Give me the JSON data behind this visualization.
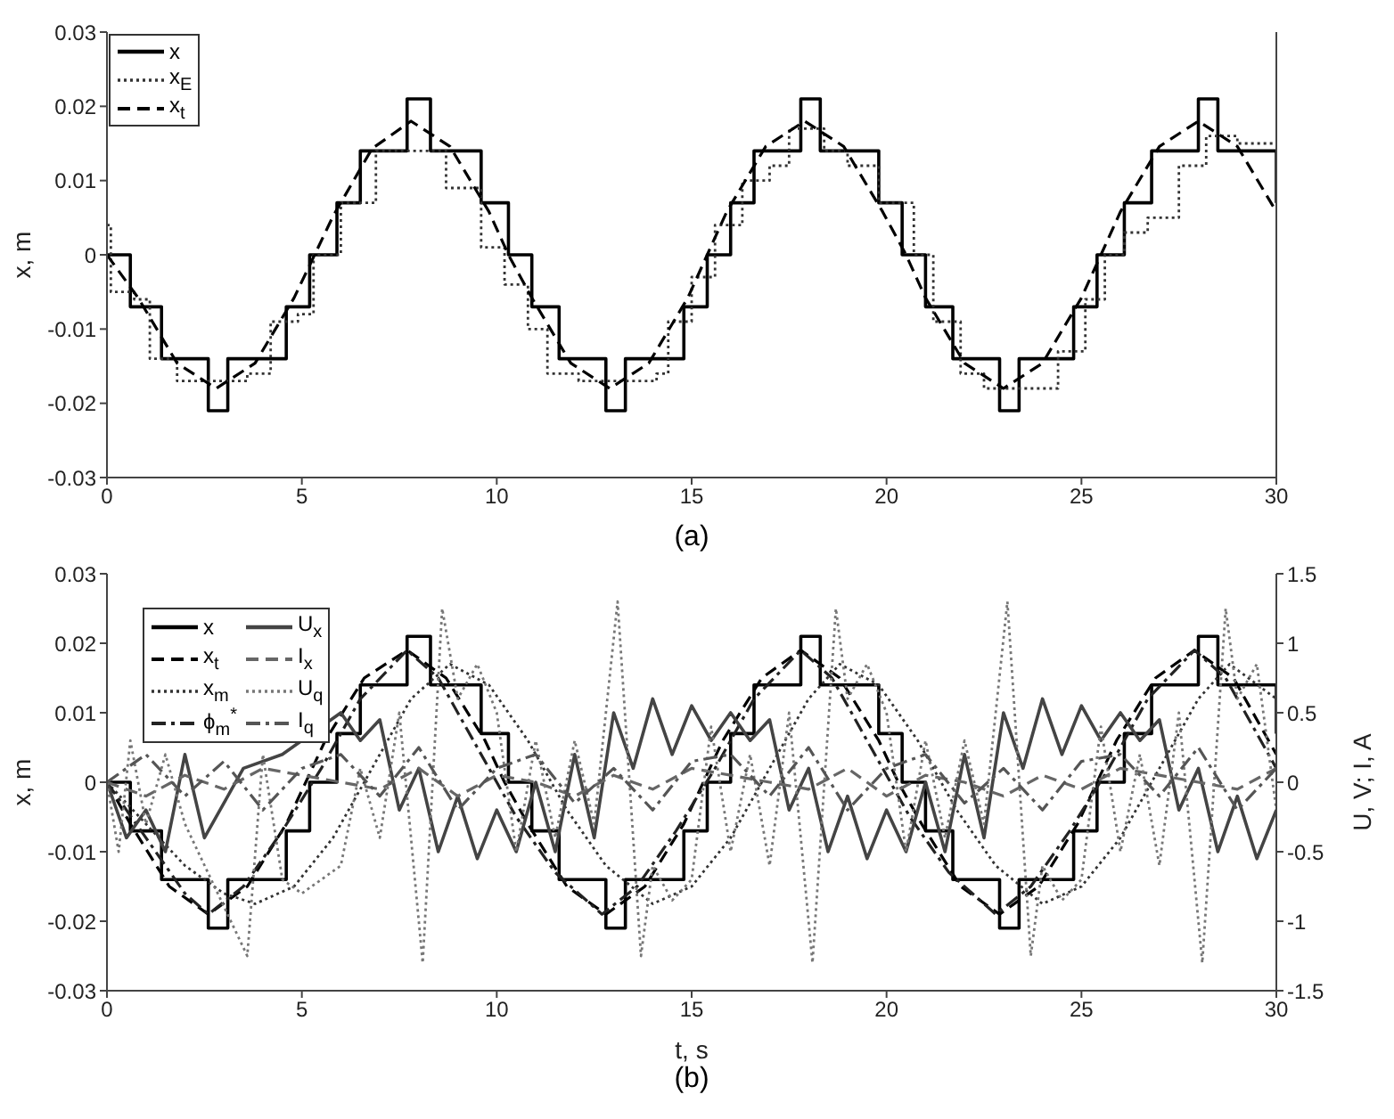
{
  "chart_data": [
    {
      "type": "line",
      "ylabel": "x, m",
      "annotations": [
        "(a)"
      ],
      "xlim": [
        0,
        30
      ],
      "xticks": [
        0,
        5,
        10,
        15,
        20,
        25,
        30
      ],
      "ylim": [
        -0.03,
        0.03
      ],
      "yticks": [
        -0.03,
        -0.02,
        -0.01,
        0,
        0.01,
        0.02,
        0.03
      ],
      "legend": "top left",
      "marker": "none",
      "series": [
        {
          "name": "x",
          "type": "step",
          "color": "#000000",
          "line_style": "solid",
          "x": [
            0,
            0.6,
            1.4,
            2.6,
            3.1,
            4.6,
            5.2,
            5.9,
            6.5,
            7.7,
            8.3,
            9.6,
            10.3,
            10.9,
            11.6,
            12.8,
            13.3,
            14.8,
            15.4,
            16.0,
            16.6,
            17.8,
            18.3,
            19.8,
            20.4,
            21.0,
            21.7,
            22.9,
            23.4,
            24.8,
            25.4,
            26.1,
            26.8,
            28.0,
            28.5,
            30
          ],
          "values": [
            0,
            -0.007,
            -0.014,
            -0.021,
            -0.014,
            -0.007,
            0,
            0.007,
            0.014,
            0.021,
            0.014,
            0.007,
            0,
            -0.007,
            -0.014,
            -0.021,
            -0.014,
            -0.007,
            0,
            0.007,
            0.014,
            0.021,
            0.014,
            0.007,
            0,
            -0.007,
            -0.014,
            -0.021,
            -0.014,
            -0.007,
            0,
            0.007,
            0.014,
            0.021,
            0.014,
            0.007
          ]
        },
        {
          "name": "x$_{E}$",
          "type": "step",
          "color": "#333333",
          "line_style": "dotted",
          "x": [
            0,
            0.1,
            0.7,
            1.1,
            1.8,
            3.6,
            4.2,
            4.9,
            5.3,
            6.0,
            6.9,
            8.7,
            9.6,
            10.2,
            10.8,
            11.3,
            12.1,
            14.1,
            14.4,
            15.0,
            15.6,
            16.3,
            17.0,
            17.5,
            18.4,
            19.0,
            19.8,
            20.7,
            21.2,
            21.9,
            22.5,
            24.4,
            25.1,
            25.6,
            26.1,
            26.7,
            27.5,
            28.2,
            29.0,
            30
          ],
          "values": [
            0.004,
            -0.005,
            -0.006,
            -0.014,
            -0.017,
            -0.016,
            -0.009,
            -0.008,
            0,
            0.007,
            0.014,
            0.009,
            0.001,
            -0.004,
            -0.01,
            -0.016,
            -0.017,
            -0.016,
            -0.009,
            -0.003,
            0.004,
            0.01,
            0.012,
            0.017,
            0.014,
            0.012,
            0.007,
            0,
            -0.009,
            -0.016,
            -0.018,
            -0.013,
            -0.006,
            0,
            0.003,
            0.005,
            0.012,
            0.016,
            0.015,
            0.015
          ]
        },
        {
          "name": "x$_{t}$",
          "color": "#000000",
          "line_style": "dashed",
          "x": [
            0,
            0.8,
            1.8,
            2.8,
            3.8,
            4.8,
            5.3,
            5.8,
            6.8,
            7.8,
            8.8,
            9.8,
            10.3,
            10.9,
            11.9,
            12.9,
            13.9,
            14.9,
            15.4,
            15.9,
            16.9,
            17.9,
            18.9,
            19.9,
            20.5,
            21.0,
            22.0,
            23.0,
            24.0,
            25.0,
            25.5,
            26.0,
            27.0,
            28.0,
            29.0,
            30.0
          ],
          "values": [
            0,
            -0.0058,
            -0.0146,
            -0.018,
            -0.0146,
            -0.0058,
            -0.0003,
            0.0052,
            0.0143,
            0.018,
            0.0146,
            0.0058,
            0,
            -0.0058,
            -0.0146,
            -0.018,
            -0.0146,
            -0.0058,
            0,
            0.0058,
            0.0146,
            0.018,
            0.0146,
            0.0058,
            0,
            -0.0058,
            -0.0146,
            -0.018,
            -0.0146,
            -0.0058,
            0,
            0.0058,
            0.0146,
            0.018,
            0.0146,
            0.0058
          ]
        }
      ]
    },
    {
      "type": "line",
      "xlabel": "t, s",
      "ylabel": "x, m",
      "y2label": "U, V; I, A",
      "annotations": [
        "(b)"
      ],
      "xlim": [
        0,
        30
      ],
      "xticks": [
        0,
        5,
        10,
        15,
        20,
        25,
        30
      ],
      "ylim": [
        -0.03,
        0.03
      ],
      "yticks": [
        -0.03,
        -0.02,
        -0.01,
        0,
        0.01,
        0.02,
        0.03
      ],
      "y2lim": [
        -1.5,
        1.5
      ],
      "y2ticks": [
        -1.5,
        -1,
        -0.5,
        0,
        0.5,
        1,
        1.5
      ],
      "legend": "top left",
      "marker": "none",
      "series": [
        {
          "name": "x",
          "type": "step",
          "color": "#000000",
          "line_style": "solid",
          "x": [
            0,
            0.6,
            1.4,
            2.6,
            3.1,
            4.6,
            5.2,
            5.9,
            6.5,
            7.7,
            8.3,
            9.6,
            10.3,
            10.9,
            11.6,
            12.8,
            13.3,
            14.8,
            15.4,
            16.0,
            16.6,
            17.8,
            18.3,
            19.8,
            20.4,
            21.0,
            21.7,
            22.9,
            23.4,
            24.8,
            25.4,
            26.1,
            26.8,
            28.0,
            28.5,
            30
          ],
          "values": [
            0,
            -0.007,
            -0.014,
            -0.021,
            -0.014,
            -0.007,
            0,
            0.007,
            0.014,
            0.021,
            0.014,
            0.007,
            0,
            -0.007,
            -0.014,
            -0.021,
            -0.014,
            -0.007,
            0,
            0.007,
            0.014,
            0.021,
            0.014,
            0.007,
            0,
            -0.007,
            -0.014,
            -0.021,
            -0.014,
            -0.007,
            0,
            0.007,
            0.014,
            0.021,
            0.014,
            0.007
          ]
        },
        {
          "name": "x$_{t}$",
          "color": "#000000",
          "line_style": "dashed",
          "x": [
            0,
            0.6,
            1.6,
            2.6,
            3.6,
            4.6,
            5.1,
            5.6,
            6.6,
            7.7,
            8.7,
            9.7,
            10.2,
            10.8,
            11.8,
            12.8,
            13.8,
            14.8,
            15.3,
            15.8,
            16.8,
            17.8,
            18.8,
            19.8,
            20.3,
            20.9,
            21.9,
            22.9,
            23.9,
            24.9,
            25.4,
            25.9,
            26.9,
            27.9,
            28.9,
            30
          ],
          "values": [
            0,
            -0.006,
            -0.015,
            -0.019,
            -0.015,
            -0.006,
            0,
            0.006,
            0.015,
            0.019,
            0.015,
            0.006,
            0,
            -0.006,
            -0.015,
            -0.019,
            -0.015,
            -0.006,
            0,
            0.006,
            0.015,
            0.019,
            0.015,
            0.006,
            0,
            -0.006,
            -0.015,
            -0.019,
            -0.015,
            -0.006,
            0,
            0.006,
            0.015,
            0.019,
            0.015,
            0.004
          ]
        },
        {
          "name": "x$_{m}$",
          "color": "#333333",
          "line_style": "dotted",
          "x": [
            0,
            1,
            2,
            3,
            3.8,
            4.8,
            5.8,
            6.8,
            7.8,
            8.8,
            9.8,
            10.8,
            11.8,
            12.8,
            14,
            15,
            16,
            17,
            18,
            18.8,
            19.8,
            20.8,
            21.8,
            22.8,
            24,
            25,
            26,
            27,
            28,
            28.8,
            30
          ],
          "values": [
            0,
            -0.006,
            -0.012,
            -0.016,
            -0.0175,
            -0.015,
            -0.008,
            0.002,
            0.012,
            0.017,
            0.014,
            0.006,
            -0.004,
            -0.012,
            -0.0175,
            -0.015,
            -0.008,
            0.002,
            0.012,
            0.017,
            0.014,
            0.006,
            -0.004,
            -0.012,
            -0.0175,
            -0.015,
            -0.008,
            0.002,
            0.012,
            0.017,
            0.012
          ]
        },
        {
          "name": "ϕ$_{m}$$^{*}$",
          "color": "#222222",
          "line_style": "dashdot",
          "x": [
            0,
            1,
            2,
            2.6,
            3.5,
            4.5,
            5.5,
            6.5,
            7.7,
            8.5,
            9.5,
            10.5,
            11.5,
            12.7,
            13.6,
            14.6,
            15.6,
            16.6,
            17.8,
            18.6,
            19.6,
            20.6,
            21.6,
            22.8,
            23.7,
            24.7,
            25.7,
            26.7,
            27.9,
            28.7,
            30
          ],
          "values": [
            0,
            -0.008,
            -0.016,
            -0.019,
            -0.015,
            -0.007,
            0.002,
            0.012,
            0.019,
            0.015,
            0.005,
            -0.005,
            -0.013,
            -0.019,
            -0.015,
            -0.007,
            0.002,
            0.012,
            0.019,
            0.015,
            0.005,
            -0.005,
            -0.013,
            -0.019,
            -0.015,
            -0.007,
            0.002,
            0.012,
            0.019,
            0.015,
            0.002
          ]
        },
        {
          "name": "U$_{x}$",
          "axis": "y2",
          "color": "#444444",
          "line_style": "solid",
          "x": [
            0,
            0.5,
            1,
            1.5,
            2,
            2.5,
            3,
            3.5,
            4,
            4.5,
            5,
            5.5,
            6,
            6.5,
            7,
            7.5,
            8,
            8.5,
            9,
            9.5,
            10,
            10.5,
            11,
            11.5,
            12,
            12.5,
            13,
            13.5,
            14,
            14.5,
            15,
            15.5,
            16,
            16.5,
            17,
            17.5,
            18,
            18.5,
            19,
            19.5,
            20,
            20.5,
            21,
            21.5,
            22,
            22.5,
            23,
            23.5,
            24,
            24.5,
            25,
            25.5,
            26,
            26.5,
            27,
            27.5,
            28,
            28.5,
            29,
            29.5,
            30
          ],
          "values": [
            0,
            -0.4,
            -0.2,
            -0.5,
            0.2,
            -0.4,
            null,
            0.1,
            null,
            0.2,
            null,
            null,
            0.5,
            0.3,
            0.45,
            -0.2,
            0.1,
            -0.5,
            -0.1,
            -0.55,
            -0.2,
            -0.5,
            0,
            -0.5,
            0.2,
            -0.4,
            0.5,
            0.1,
            0.6,
            0.2,
            0.55,
            0.3,
            0.5,
            0.3,
            0.45,
            -0.2,
            0.1,
            -0.5,
            -0.1,
            -0.55,
            -0.2,
            -0.5,
            0,
            -0.5,
            0.2,
            -0.4,
            0.5,
            0.1,
            0.6,
            0.2,
            0.55,
            0.3,
            0.5,
            0.3,
            0.45,
            -0.2,
            0.1,
            -0.5,
            -0.1,
            -0.55,
            -0.2
          ]
        },
        {
          "name": "I$_{x}$",
          "axis": "y2",
          "color": "#666666",
          "line_style": "dashed",
          "x": [
            0,
            1,
            2,
            3,
            4,
            5,
            6,
            7,
            8,
            9,
            10,
            11,
            12,
            13,
            14,
            15,
            16,
            17,
            18,
            19,
            20,
            21,
            22,
            23,
            24,
            25,
            26,
            27,
            28,
            29,
            30
          ],
          "values": [
            0,
            -0.1,
            0.05,
            -0.05,
            0.1,
            0.05,
            0,
            -0.05,
            0.1,
            -0.1,
            0.05,
            0,
            -0.1,
            0.05,
            -0.05,
            0.1,
            0.05,
            0,
            -0.05,
            0.1,
            -0.1,
            0.05,
            0,
            -0.1,
            0.05,
            -0.05,
            0.1,
            0.05,
            0,
            -0.05,
            0.1
          ]
        },
        {
          "name": "U$_{q}$",
          "axis": "y2",
          "color": "#777777",
          "line_style": "dotted",
          "x": [
            0,
            0.3,
            0.6,
            1.0,
            1.5,
            2.0,
            2.5,
            3.1,
            3.6,
            4.0,
            4.5,
            5.0,
            5.5,
            6.0,
            6.5,
            7.0,
            7.5,
            8.1,
            8.6,
            9.0,
            9.5,
            10.0,
            10.5,
            11.0,
            11.5,
            12.0,
            12.5,
            13.1,
            13.7,
            14.0,
            14.5,
            15.0,
            15.5,
            16.0,
            16.5,
            17.0,
            17.5,
            18.1,
            18.7,
            19.0,
            19.5,
            20.0,
            20.5,
            21.0,
            21.5,
            22.0,
            22.5,
            23.1,
            23.7,
            24.0,
            24.5,
            25.0,
            25.5,
            26.0,
            26.5,
            27.0,
            27.5,
            28.1,
            28.7,
            29.0,
            29.5,
            30.0
          ],
          "values": [
            0,
            -0.5,
            0.3,
            -0.3,
            0.2,
            -0.3,
            null,
            null,
            -1.25,
            0.2,
            -0.7,
            -0.8,
            null,
            -0.6,
            0.1,
            -0.4,
            0.5,
            -1.3,
            1.25,
            0.6,
            0.85,
            0.5,
            -0.5,
            0.3,
            -0.4,
            0.3,
            -0.3,
            1.3,
            -1.25,
            -0.6,
            -0.85,
            -0.7,
            0.4,
            -0.5,
            0.2,
            -0.6,
            0.5,
            -1.3,
            1.25,
            0.6,
            0.85,
            0.5,
            -0.5,
            0.3,
            -0.4,
            0.3,
            -0.3,
            1.3,
            -1.25,
            -0.6,
            -0.85,
            -0.7,
            0.4,
            -0.5,
            0.2,
            -0.6,
            0.5,
            -1.3,
            1.25,
            0.6,
            0.85,
            -0.2
          ]
        },
        {
          "name": "I$_{q}$",
          "axis": "y2",
          "color": "#555555",
          "line_style": "dashdot",
          "x": [
            0,
            1,
            2,
            3,
            4,
            5,
            6,
            7,
            8,
            9,
            10,
            11,
            12,
            13,
            14,
            15,
            16,
            17,
            18,
            19,
            20,
            21,
            22,
            23,
            24,
            25,
            26,
            27,
            28,
            29,
            30
          ],
          "values": [
            0,
            0.2,
            -0.1,
            0.15,
            -0.2,
            0.1,
            0.2,
            -0.1,
            0.25,
            -0.2,
            0.1,
            0.2,
            -0.15,
            0.1,
            -0.2,
            0.15,
            0.2,
            -0.1,
            0.25,
            -0.2,
            0.1,
            0.2,
            -0.15,
            0.1,
            -0.2,
            0.15,
            0.2,
            -0.1,
            0.25,
            -0.2,
            0.1
          ]
        }
      ]
    }
  ]
}
